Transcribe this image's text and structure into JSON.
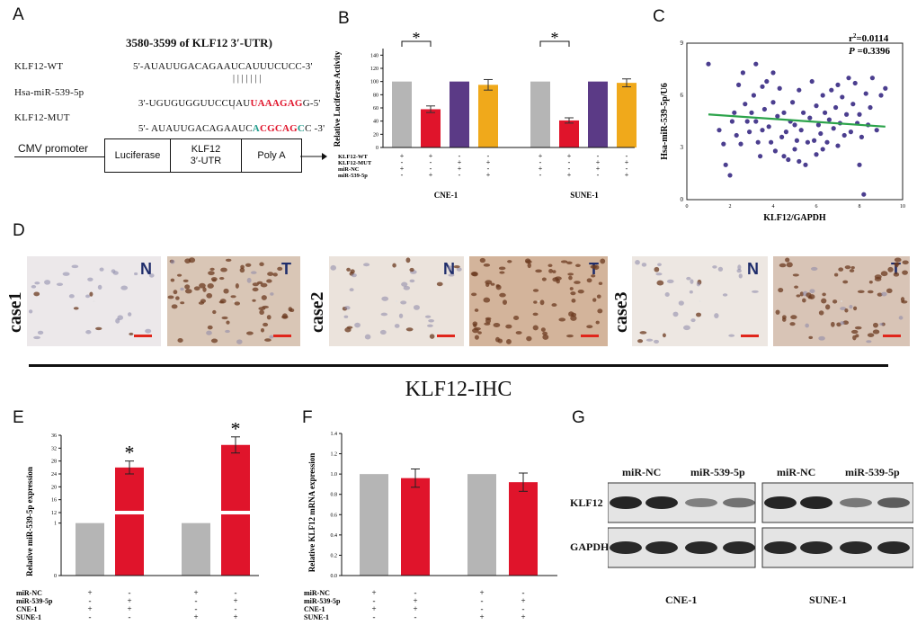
{
  "colors": {
    "gray": "#b5b5b5",
    "red": "#e0142b",
    "purple": "#5b3a86",
    "orange": "#f0a91b",
    "green": "#2ba34a",
    "dot": "#4b3e8f",
    "nt_label": "#1f2d6b",
    "mut_green": "#1f9c8b",
    "mut_red": "#e0142b"
  },
  "panels": {
    "A": "A",
    "B": "B",
    "C": "C",
    "D": "D",
    "E": "E",
    "F": "F",
    "G": "G"
  },
  "panelA": {
    "title": "3580-3599 of KLF12 3′-UTR)",
    "rows": [
      {
        "label": "KLF12-WT",
        "seq": "5'-AUAUUGACAGAAUCAUUUCUCC-3'"
      },
      {
        "label": "Hsa-miR-539-5p",
        "seq_prefix": "3'-UGUGUGGUUCCUAU",
        "seq_highlight": "UAAAGAG",
        "seq_suffix": "G-5'"
      },
      {
        "label": "KLF12-MUT",
        "seq_prefix": "5'- AUAUUGACAGAAUC",
        "mut1": "A",
        "mut2": "CGCAG",
        "mut3": "C",
        "seq_suffix": "C -3'"
      }
    ],
    "pairs": "| | | | | | |",
    "construct": {
      "promoter": "CMV promoter",
      "boxes": [
        "Luciferase",
        "KLF12\n3′-UTR",
        "Poly A"
      ]
    }
  },
  "chart_data": [
    {
      "id": "B",
      "type": "bar",
      "title": "",
      "ylabel": "Relative Luciferase Activity",
      "ylim": [
        0,
        150
      ],
      "yticks": [
        0,
        20,
        40,
        60,
        80,
        100,
        120,
        140
      ],
      "groups": [
        "CNE-1",
        "SUNE-1"
      ],
      "series_colors": [
        "gray",
        "red",
        "purple",
        "orange"
      ],
      "values": [
        [
          100,
          58,
          100,
          95
        ],
        [
          100,
          41,
          100,
          98
        ]
      ],
      "errors": [
        [
          0,
          5,
          0,
          8
        ],
        [
          0,
          4,
          0,
          6
        ]
      ],
      "significance": "*",
      "row_labels": [
        "KLF12-WT",
        "KLF12-MUT",
        "miR-NC",
        "miR-539-5p"
      ],
      "row_signs": [
        [
          "+",
          "+",
          "-",
          "-"
        ],
        [
          "-",
          "-",
          "+",
          "+"
        ],
        [
          "+",
          "-",
          "+",
          "-"
        ],
        [
          "-",
          "+",
          "-",
          "+"
        ]
      ]
    },
    {
      "id": "C",
      "type": "scatter",
      "xlabel": "KLF12/GAPDH",
      "ylabel": "Hsa-miR-539-5p/U6",
      "xlim": [
        0,
        10
      ],
      "ylim": [
        0,
        9
      ],
      "xticks": [
        0,
        2,
        4,
        6,
        8,
        10
      ],
      "yticks": [
        0,
        3,
        6,
        9
      ],
      "r2_label": "r",
      "r2_sup": "2",
      "r2_value": "=0.0114",
      "p_label": "P",
      "p_value": " =0.3396",
      "fit": {
        "x0": 1,
        "y0": 4.9,
        "x1": 9.2,
        "y1": 4.2
      },
      "points": [
        [
          1.0,
          7.8
        ],
        [
          1.5,
          4.0
        ],
        [
          1.7,
          3.2
        ],
        [
          1.8,
          2.0
        ],
        [
          2.0,
          1.4
        ],
        [
          2.1,
          4.5
        ],
        [
          2.2,
          5.0
        ],
        [
          2.3,
          3.7
        ],
        [
          2.4,
          6.6
        ],
        [
          2.5,
          3.2
        ],
        [
          2.6,
          7.3
        ],
        [
          2.7,
          5.5
        ],
        [
          2.8,
          4.5
        ],
        [
          2.9,
          3.9
        ],
        [
          3.0,
          5.0
        ],
        [
          3.1,
          6.0
        ],
        [
          3.2,
          7.8
        ],
        [
          3.2,
          4.5
        ],
        [
          3.3,
          3.3
        ],
        [
          3.4,
          2.5
        ],
        [
          3.5,
          6.5
        ],
        [
          3.5,
          4.0
        ],
        [
          3.6,
          5.2
        ],
        [
          3.7,
          6.8
        ],
        [
          3.8,
          4.2
        ],
        [
          3.9,
          3.3
        ],
        [
          4.0,
          5.6
        ],
        [
          4.0,
          7.3
        ],
        [
          4.1,
          2.8
        ],
        [
          4.2,
          4.8
        ],
        [
          4.3,
          6.4
        ],
        [
          4.4,
          3.6
        ],
        [
          4.5,
          2.5
        ],
        [
          4.5,
          5.0
        ],
        [
          4.6,
          3.9
        ],
        [
          4.7,
          2.3
        ],
        [
          4.8,
          4.5
        ],
        [
          4.9,
          5.6
        ],
        [
          5.0,
          2.9
        ],
        [
          5.0,
          4.3
        ],
        [
          5.1,
          3.4
        ],
        [
          5.2,
          2.2
        ],
        [
          5.2,
          6.3
        ],
        [
          5.3,
          4.0
        ],
        [
          5.4,
          5.0
        ],
        [
          5.5,
          2.0
        ],
        [
          5.6,
          3.3
        ],
        [
          5.7,
          4.7
        ],
        [
          5.8,
          6.8
        ],
        [
          5.9,
          3.4
        ],
        [
          6.0,
          2.6
        ],
        [
          6.0,
          5.4
        ],
        [
          6.1,
          4.3
        ],
        [
          6.2,
          3.8
        ],
        [
          6.3,
          6.0
        ],
        [
          6.3,
          2.9
        ],
        [
          6.4,
          5.0
        ],
        [
          6.5,
          3.3
        ],
        [
          6.6,
          4.6
        ],
        [
          6.7,
          6.3
        ],
        [
          6.8,
          4.1
        ],
        [
          6.9,
          5.3
        ],
        [
          7.0,
          3.1
        ],
        [
          7.0,
          6.6
        ],
        [
          7.1,
          4.4
        ],
        [
          7.2,
          5.9
        ],
        [
          7.3,
          3.7
        ],
        [
          7.4,
          4.9
        ],
        [
          7.5,
          7.0
        ],
        [
          7.6,
          3.9
        ],
        [
          7.7,
          5.5
        ],
        [
          7.8,
          6.7
        ],
        [
          7.9,
          4.4
        ],
        [
          8.0,
          2.0
        ],
        [
          8.0,
          4.9
        ],
        [
          8.1,
          3.6
        ],
        [
          8.2,
          0.3
        ],
        [
          8.3,
          6.1
        ],
        [
          8.4,
          4.3
        ],
        [
          8.5,
          5.3
        ],
        [
          8.6,
          7.0
        ],
        [
          8.8,
          4.0
        ],
        [
          9.0,
          6.0
        ],
        [
          9.2,
          6.4
        ]
      ]
    },
    {
      "id": "E",
      "type": "bar",
      "ylabel": "Relative miR-539-5p expression",
      "ytick_labels": [
        "0",
        "1",
        "12",
        "16",
        "20",
        "24",
        "28",
        "32",
        "36"
      ],
      "series_colors": [
        "gray",
        "red",
        "gray",
        "red"
      ],
      "values": [
        1,
        26,
        1,
        33
      ],
      "errors": [
        0,
        2,
        0,
        2.5
      ],
      "significance": [
        false,
        true,
        false,
        true
      ],
      "significance_mark": "*",
      "row_labels": [
        "miR-NC",
        "miR-539-5p",
        "CNE-1",
        "SUNE-1"
      ],
      "row_signs": [
        [
          "+",
          "-",
          "+",
          "-"
        ],
        [
          "-",
          "+",
          "-",
          "+"
        ],
        [
          "+",
          "+",
          "-",
          "-"
        ],
        [
          "-",
          "-",
          "+",
          "+"
        ]
      ]
    },
    {
      "id": "F",
      "type": "bar",
      "ylabel": "Relative KLF12 mRNA expression",
      "ylim": [
        0,
        1.4
      ],
      "yticks": [
        0,
        0.2,
        0.4,
        0.6,
        0.8,
        1.0,
        1.2,
        1.4
      ],
      "ytick_labels": [
        "0.0",
        "0.2",
        "0.4",
        "0.6",
        "0.8",
        "1.0",
        "1.2",
        "1.4"
      ],
      "series_colors": [
        "gray",
        "red",
        "gray",
        "red"
      ],
      "values": [
        1.0,
        0.96,
        1.0,
        0.92
      ],
      "errors": [
        0,
        0.09,
        0,
        0.09
      ],
      "row_labels": [
        "miR-NC",
        "miR-539-5p",
        "CNE-1",
        "SUNE-1"
      ],
      "row_signs": [
        [
          "+",
          "-",
          "+",
          "-"
        ],
        [
          "-",
          "+",
          "-",
          "+"
        ],
        [
          "+",
          "+",
          "-",
          "-"
        ],
        [
          "-",
          "-",
          "+",
          "+"
        ]
      ]
    }
  ],
  "panelD": {
    "cases": [
      "case1",
      "case2",
      "case3"
    ],
    "n_label": "N",
    "t_label": "T",
    "caption": "KLF12-IHC"
  },
  "panelG": {
    "headers": [
      "miR-NC",
      "miR-539-5p",
      "miR-NC",
      "miR-539-5p"
    ],
    "rows": [
      "KLF12",
      "GAPDH"
    ],
    "cells": [
      "CNE-1",
      "SUNE-1"
    ]
  }
}
